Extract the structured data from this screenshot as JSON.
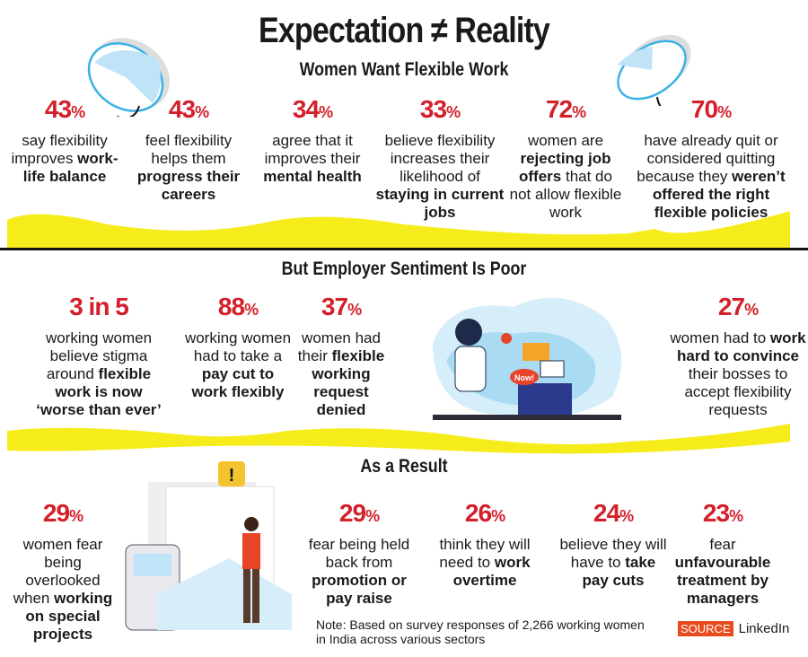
{
  "title": "Expectation ≠ Reality",
  "colors": {
    "accent_red": "#d3202a",
    "wave_yellow": "#f7ec1b",
    "source_orange": "#e84c1e",
    "pie_blue": "#3bb0e6"
  },
  "sections": [
    {
      "heading": "Women Want Flexible Work",
      "stats": [
        {
          "value": "43",
          "unit": "%",
          "text": [
            {
              "t": "say flexibility improves "
            },
            {
              "t": "work-life balance",
              "b": true
            }
          ]
        },
        {
          "value": "43",
          "unit": "%",
          "text": [
            {
              "t": "feel flexibility helps them "
            },
            {
              "t": "progress their careers",
              "b": true
            }
          ]
        },
        {
          "value": "34",
          "unit": "%",
          "text": [
            {
              "t": "agree that it improves their "
            },
            {
              "t": "mental health",
              "b": true
            }
          ]
        },
        {
          "value": "33",
          "unit": "%",
          "text": [
            {
              "t": "believe flexibility increases their likelihood of "
            },
            {
              "t": "staying in current jobs",
              "b": true
            }
          ]
        },
        {
          "value": "72",
          "unit": "%",
          "text": [
            {
              "t": "women are "
            },
            {
              "t": "rejecting job offers",
              "b": true
            },
            {
              "t": " that do not allow flexible work"
            }
          ]
        },
        {
          "value": "70",
          "unit": "%",
          "text": [
            {
              "t": "have already quit or considered quitting because they "
            },
            {
              "t": "weren’t offered the right flexible policies",
              "b": true
            }
          ]
        }
      ]
    },
    {
      "heading": "But Employer Sentiment Is Poor",
      "stats": [
        {
          "value": "3 in 5",
          "unit": "",
          "text": [
            {
              "t": "working women believe stigma around "
            },
            {
              "t": "flexible work is now ‘worse than ever’",
              "b": true
            }
          ]
        },
        {
          "value": "88",
          "unit": "%",
          "text": [
            {
              "t": "working women had to take a "
            },
            {
              "t": "pay cut to work flexibly",
              "b": true
            }
          ]
        },
        {
          "value": "37",
          "unit": "%",
          "text": [
            {
              "t": "women had their "
            },
            {
              "t": "flexible working request denied",
              "b": true
            }
          ]
        },
        {
          "value": "27",
          "unit": "%",
          "text": [
            {
              "t": "women had to "
            },
            {
              "t": "work hard to convince",
              "b": true
            },
            {
              "t": " their bosses to accept flexibility requests"
            }
          ]
        }
      ],
      "illustration_badge": "Now!"
    },
    {
      "heading": "As a Result",
      "stats": [
        {
          "value": "29",
          "unit": "%",
          "text": [
            {
              "t": "women fear being overlooked when "
            },
            {
              "t": "working on special projects",
              "b": true
            }
          ]
        },
        {
          "value": "29",
          "unit": "%",
          "text": [
            {
              "t": "fear being held back from "
            },
            {
              "t": "promotion or pay raise",
              "b": true
            }
          ]
        },
        {
          "value": "26",
          "unit": "%",
          "text": [
            {
              "t": "think they will need to "
            },
            {
              "t": "work overtime",
              "b": true
            }
          ]
        },
        {
          "value": "24",
          "unit": "%",
          "text": [
            {
              "t": "believe they will have to "
            },
            {
              "t": "take pay cuts",
              "b": true
            }
          ]
        },
        {
          "value": "23",
          "unit": "%",
          "text": [
            {
              "t": "fear "
            },
            {
              "t": "unfavourable treatment by managers",
              "b": true
            }
          ]
        }
      ]
    }
  ],
  "pies": [
    {
      "percent": 43
    },
    {
      "percent": 70
    }
  ],
  "note": "Note: Based on survey responses of 2,266 working women in India across various sectors",
  "source": {
    "label": "SOURCE",
    "name": "LinkedIn"
  }
}
